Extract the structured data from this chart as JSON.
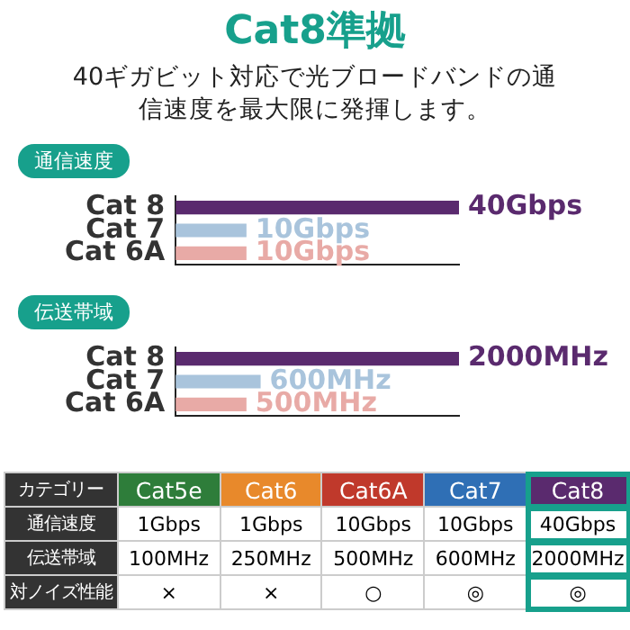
{
  "chart_data": [
    {
      "type": "bar",
      "orientation": "horizontal",
      "title": "Cat8準拠",
      "subtitle": "40ギガビット対応で光ブロードバンドの通信速度を最大限に発揮します。",
      "annotations": [
        "通信速度"
      ],
      "categories": [
        "Cat 8",
        "Cat 7",
        "Cat 6A"
      ],
      "values": [
        40,
        10,
        10
      ],
      "colors": [
        "#5a2a6e",
        "#a9c4dc",
        "#e8aaa6"
      ],
      "value_labels": [
        "40Gbps",
        "10Gbps",
        "10Gbps"
      ],
      "xlim": [
        0,
        40
      ],
      "tick_labels": "y",
      "grid": false
    },
    {
      "type": "bar",
      "orientation": "horizontal",
      "annotations": [
        "伝送帯域"
      ],
      "categories": [
        "Cat 8",
        "Cat 7",
        "Cat 6A"
      ],
      "values": [
        2000,
        600,
        500
      ],
      "colors": [
        "#5a2a6e",
        "#a9c4dc",
        "#e8aaa6"
      ],
      "value_labels": [
        "2000MHz",
        "600MHz",
        "500MHz"
      ],
      "xlim": [
        0,
        2000
      ],
      "tick_labels": "y",
      "grid": false
    },
    {
      "type": "other",
      "ylabel": "カテゴリー",
      "categories": [
        "Cat5e",
        "Cat6",
        "Cat6A",
        "Cat7",
        "Cat8"
      ],
      "colors": [
        "#2e7d3a",
        "#e8892b",
        "#c0392b",
        "#2f6fb5",
        "#5a2a6e"
      ],
      "y_categories": [
        "通信速度",
        "伝送帯域",
        "対ノイズ性能"
      ],
      "cell_labels": [
        [
          "1Gbps",
          "1Gbps",
          "10Gbps",
          "10Gbps",
          "40Gbps"
        ],
        [
          "100MHz",
          "250MHz",
          "500MHz",
          "600MHz",
          "2000MHz"
        ],
        [
          "×",
          "×",
          "○",
          "◎",
          "◎"
        ]
      ]
    }
  ]
}
